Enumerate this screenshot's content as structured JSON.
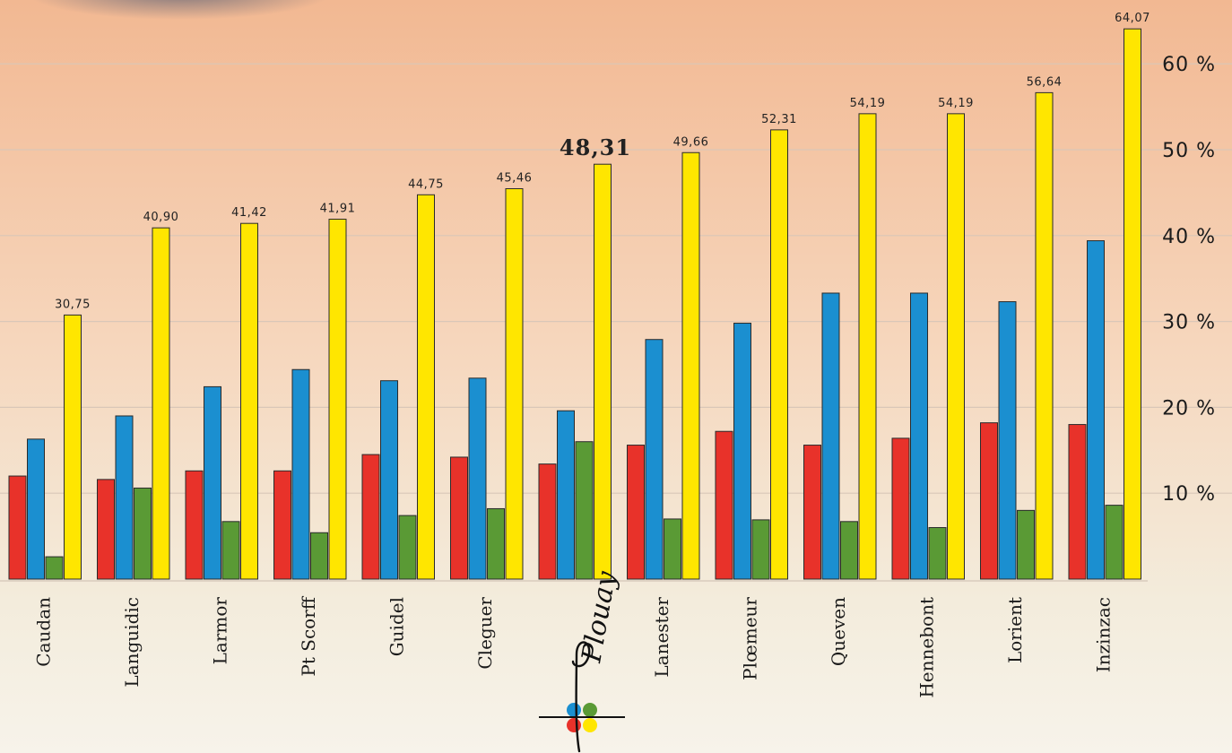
{
  "chart_data": {
    "type": "bar",
    "categories": [
      "Caudan",
      "Languidic",
      "Larmor",
      "Pt Scorff",
      "Guidel",
      "Cleguer",
      "",
      "Lanester",
      "Plœmeur",
      "Queven",
      "Hennebont",
      "Lorient",
      "Inzinzac"
    ],
    "series": [
      {
        "color": "#e8322a",
        "values": [
          12.0,
          11.6,
          12.6,
          12.6,
          14.5,
          14.2,
          13.4,
          15.6,
          17.2,
          15.6,
          16.4,
          18.2,
          18.0
        ]
      },
      {
        "color": "#1b8fd0",
        "values": [
          16.3,
          19.0,
          22.4,
          24.4,
          23.1,
          23.4,
          19.6,
          27.9,
          29.8,
          33.3,
          33.3,
          32.3,
          39.4
        ]
      },
      {
        "color": "#5a9a35",
        "values": [
          2.6,
          10.6,
          6.7,
          5.4,
          7.4,
          8.2,
          16.0,
          7.0,
          6.9,
          6.7,
          6.0,
          8.0,
          8.6
        ]
      },
      {
        "color": "#ffe600",
        "values": [
          30.75,
          40.9,
          41.42,
          41.91,
          44.75,
          45.46,
          48.31,
          49.66,
          52.31,
          54.19,
          54.19,
          56.64,
          64.07
        ]
      }
    ],
    "data_labels": [
      "30,75",
      "40,90",
      "41,42",
      "41,91",
      "44,75",
      "45,46",
      "48,31",
      "49,66",
      "52,31",
      "54,19",
      "54,19",
      "56,64",
      "64,07"
    ],
    "highlight_index": 6,
    "y_ticks": [
      {
        "value": 10,
        "label": "10 %"
      },
      {
        "value": 20,
        "label": "20 %"
      },
      {
        "value": 30,
        "label": "30 %"
      },
      {
        "value": 40,
        "label": "40 %"
      },
      {
        "value": 50,
        "label": "50 %"
      },
      {
        "value": 60,
        "label": "60 %"
      }
    ],
    "ylim": [
      0,
      65
    ],
    "grid": true,
    "y_axis_side": "right",
    "logo_text": "Plouay",
    "logo_colors": [
      "#1b8fd0",
      "#5a9a35",
      "#e8322a",
      "#ffe600"
    ]
  }
}
